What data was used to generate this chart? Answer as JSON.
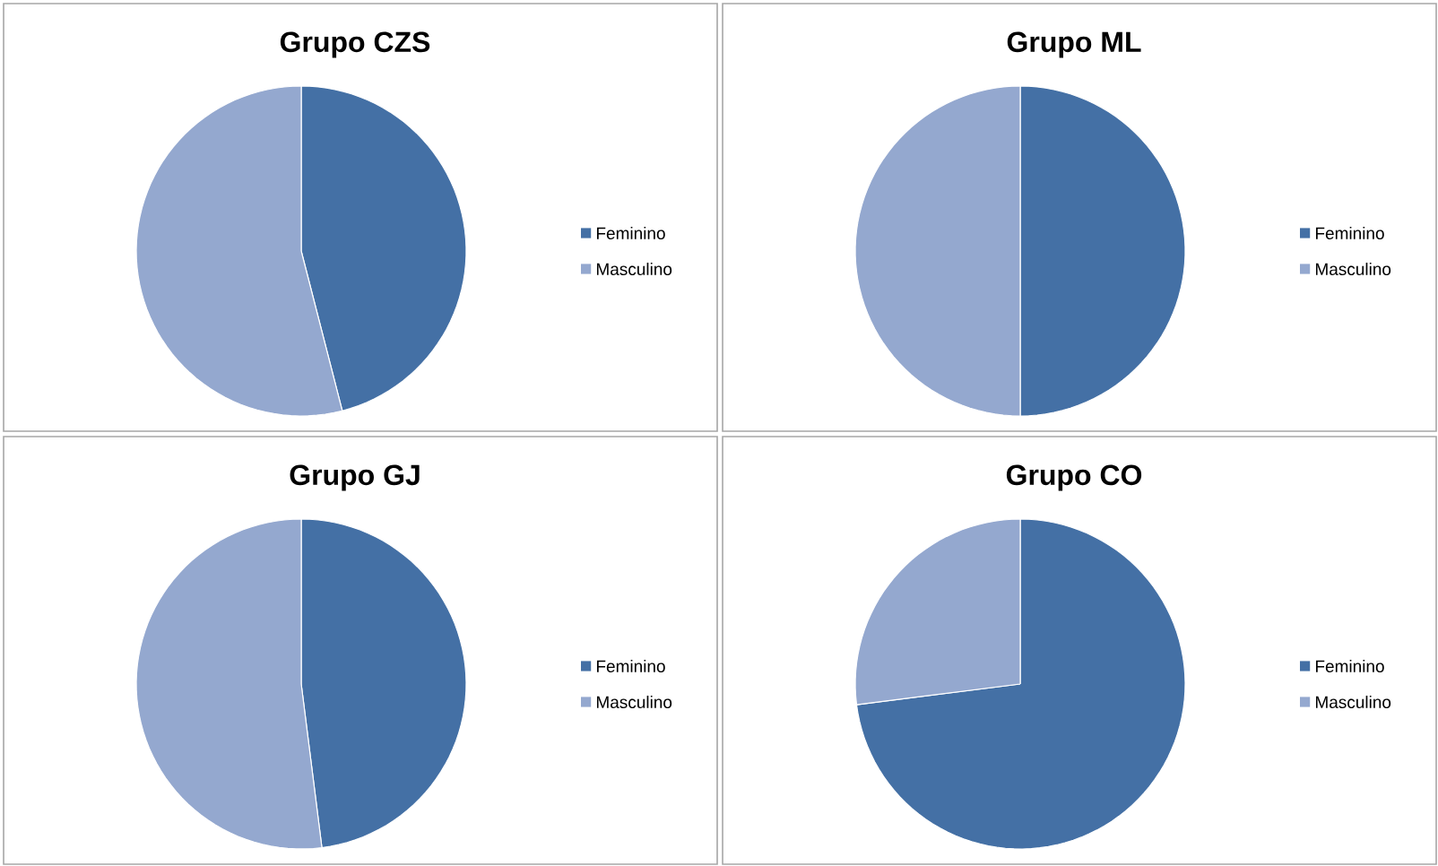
{
  "chart_data": [
    {
      "type": "pie",
      "title": "Grupo CZS",
      "categories": [
        "Feminino",
        "Masculino"
      ],
      "values": [
        46,
        54
      ],
      "colors": [
        "#4470a5",
        "#94a8cf"
      ],
      "legend": "right"
    },
    {
      "type": "pie",
      "title": "Grupo ML",
      "categories": [
        "Feminino",
        "Masculino"
      ],
      "values": [
        50,
        50
      ],
      "colors": [
        "#4470a5",
        "#94a8cf"
      ],
      "legend": "right"
    },
    {
      "type": "pie",
      "title": "Grupo GJ",
      "categories": [
        "Feminino",
        "Masculino"
      ],
      "values": [
        48,
        52
      ],
      "colors": [
        "#4470a5",
        "#94a8cf"
      ],
      "legend": "right"
    },
    {
      "type": "pie",
      "title": "Grupo CO",
      "categories": [
        "Feminino",
        "Masculino"
      ],
      "values": [
        73,
        27
      ],
      "colors": [
        "#4470a5",
        "#94a8cf"
      ],
      "legend": "right"
    }
  ]
}
